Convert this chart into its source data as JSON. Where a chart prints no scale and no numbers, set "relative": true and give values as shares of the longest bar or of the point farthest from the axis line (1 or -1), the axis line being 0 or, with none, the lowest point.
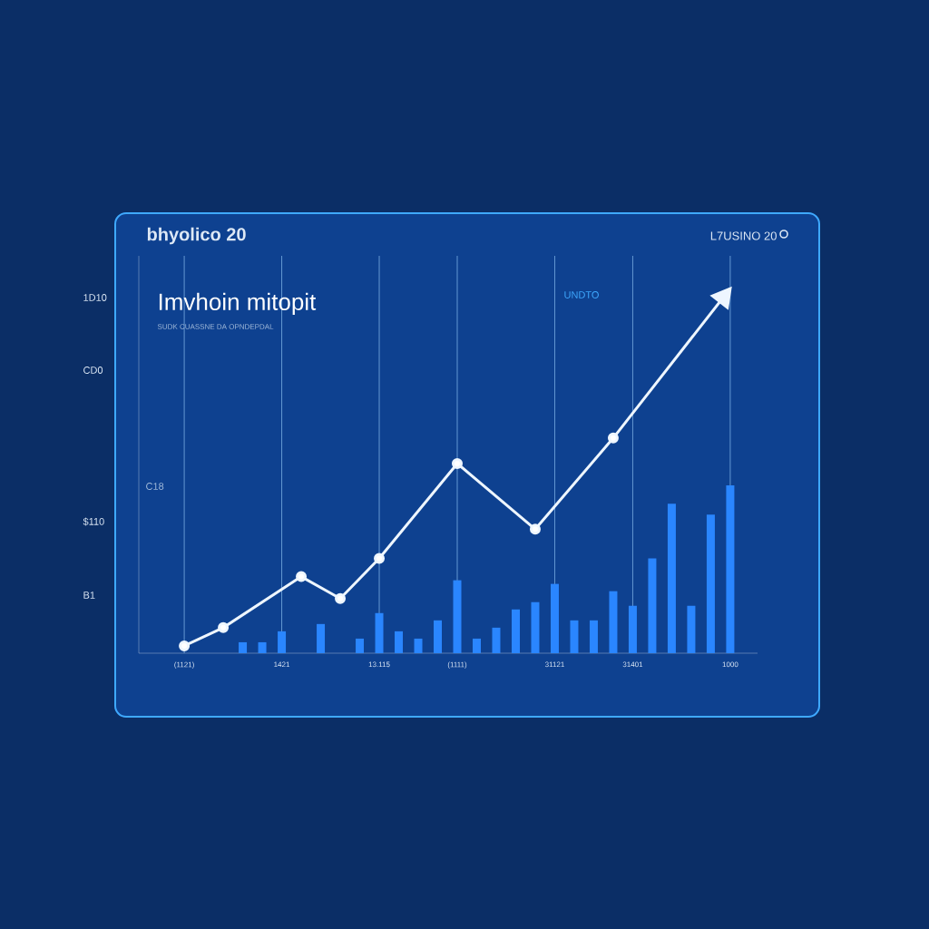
{
  "chart_data": {
    "type": "line",
    "title": "bhyolico 20",
    "subtitle": "Imvhoin mitopit",
    "annotations": [
      "SUDK CUASSNE DA OPNDEPDAL",
      "UNDTO",
      "L7USINO 20",
      "1D10",
      "CD0",
      "C18",
      "$110",
      "B1"
    ],
    "relative": true,
    "categories": [
      "(1121)",
      null,
      null,
      null,
      null,
      "1421",
      null,
      null,
      null,
      null,
      "13.115",
      null,
      null,
      null,
      "(1111)",
      null,
      null,
      null,
      null,
      "31121",
      null,
      null,
      null,
      "31401",
      null,
      null,
      null,
      null,
      "1000"
    ],
    "grid": "x",
    "marker": "circle",
    "line_style": "solid",
    "series": [
      {
        "type": "bar",
        "color": "#2a86ff",
        "values": [
          null,
          null,
          null,
          0.03,
          0.03,
          0.06,
          null,
          0.08,
          null,
          0.04,
          0.11,
          0.06,
          0.04,
          0.09,
          0.2,
          0.04,
          0.07,
          0.12,
          0.14,
          0.19,
          0.09,
          0.09,
          0.17,
          0.13,
          0.26,
          0.41,
          0.13,
          0.38,
          0.46
        ]
      },
      {
        "color": "#eef6ff",
        "values": [
          0.02,
          null,
          0.07,
          null,
          null,
          null,
          0.21,
          null,
          0.15,
          null,
          0.26,
          null,
          null,
          null,
          0.52,
          null,
          null,
          null,
          0.34,
          null,
          null,
          null,
          0.59,
          null,
          null,
          null,
          null,
          null,
          1.0
        ]
      }
    ]
  }
}
